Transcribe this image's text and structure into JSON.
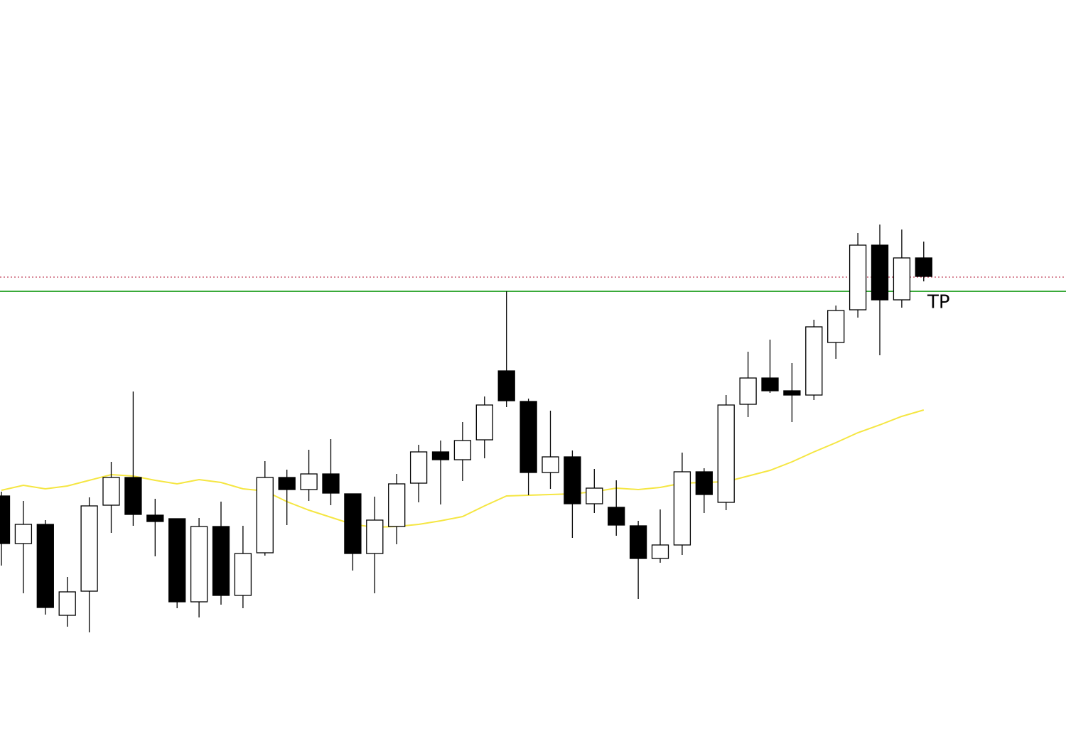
{
  "chart_data": {
    "type": "candlestick",
    "ylim": [
      0,
      1064
    ],
    "up_color": "#ffffff",
    "down_color": "#000000",
    "edge_color": "#000000",
    "open": [
      366,
      299,
      326,
      198,
      232,
      353,
      392,
      339,
      334,
      217,
      323,
      226,
      286,
      392,
      375,
      397,
      369,
      285,
      323,
      384,
      428,
      417,
      445,
      542,
      499,
      399,
      421,
      355,
      350,
      324,
      278,
      297,
      400,
      357,
      495,
      532,
      514,
      508,
      582,
      628,
      719,
      642,
      701
    ],
    "high": [
      372,
      359,
      332,
      252,
      364,
      414,
      513,
      362,
      334,
      335,
      358,
      324,
      415,
      403,
      431,
      446,
      369,
      365,
      397,
      438,
      444,
      470,
      506,
      654,
      503,
      486,
      430,
      404,
      388,
      331,
      347,
      427,
      405,
      508,
      569,
      586,
      553,
      614,
      634,
      736,
      748,
      741,
      724
    ],
    "low": [
      268,
      229,
      199,
      182,
      174,
      314,
      324,
      281,
      208,
      195,
      213,
      208,
      282,
      325,
      359,
      353,
      261,
      229,
      298,
      357,
      354,
      387,
      419,
      491,
      367,
      376,
      307,
      342,
      310,
      221,
      272,
      283,
      342,
      346,
      477,
      511,
      470,
      501,
      559,
      617,
      564,
      631,
      668
    ],
    "close": [
      299,
      326,
      209,
      231,
      352,
      392,
      340,
      330,
      217,
      323,
      226,
      285,
      392,
      375,
      397,
      370,
      285,
      332,
      383,
      428,
      417,
      444,
      494,
      500,
      399,
      421,
      355,
      377,
      325,
      278,
      297,
      400,
      368,
      494,
      532,
      514,
      508,
      604,
      627,
      719,
      642,
      701,
      675
    ],
    "moving_average": {
      "color": "#f5e642",
      "values": [
        374,
        381,
        376,
        380,
        388,
        396,
        394,
        388,
        383,
        389,
        385,
        376,
        373,
        358,
        346,
        336,
        326,
        322,
        323,
        326,
        331,
        337,
        352,
        366,
        367,
        368,
        369,
        372,
        377,
        375,
        378,
        384,
        385,
        386,
        394,
        402,
        414,
        428,
        441,
        455,
        466,
        478,
        487
      ]
    },
    "hlines": [
      {
        "value": 654,
        "color": "#3aaa3a",
        "style": "solid"
      },
      {
        "value": 674,
        "color": "#c0405a",
        "style": "dotted"
      }
    ],
    "annotation": "TP"
  }
}
